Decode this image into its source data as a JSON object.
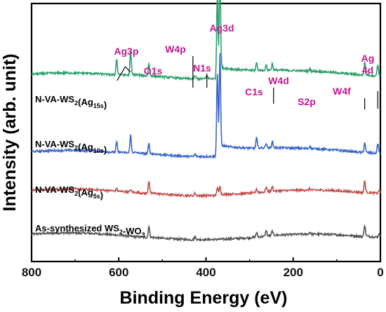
{
  "chart_data": {
    "type": "line",
    "xlabel": "Binding Energy (eV)",
    "ylabel": "Intensity (arb. unit)",
    "xlim": [
      800,
      0
    ],
    "x_reversed": true,
    "xticks": [
      800,
      600,
      400,
      200,
      0
    ],
    "y_ticks_shown": false,
    "grid": false,
    "peak_annotation_color": "#c2188f",
    "peak_annotations": [
      {
        "text": "Ag3p",
        "x": 585
      },
      {
        "text": "O1s",
        "x": 531
      },
      {
        "text": "W4p",
        "x": 430
      },
      {
        "text": "N1s",
        "x": 398
      },
      {
        "text": "Ag3d",
        "x": 368
      },
      {
        "text": "C1s",
        "x": 284
      },
      {
        "text": "W4d",
        "x": 245
      },
      {
        "text": "S2p",
        "x": 162
      },
      {
        "text": "W4f",
        "x": 36
      },
      {
        "text": "Ag 4d",
        "x": 6
      }
    ],
    "series": [
      {
        "name": "As-synthesized WS2-WO3",
        "label_main": "As-synthesized WS",
        "label_sub": "2",
        "label_tail": "-WO",
        "label_sub2": "3",
        "color": "#555555",
        "baseline": 0.1,
        "peaks": [
          {
            "x": 531,
            "h": 0.045
          },
          {
            "x": 425,
            "h": 0.012
          },
          {
            "x": 284,
            "h": 0.018
          },
          {
            "x": 262,
            "h": 0.022
          },
          {
            "x": 248,
            "h": 0.018
          },
          {
            "x": 162,
            "h": 0.008
          },
          {
            "x": 36,
            "h": 0.045
          },
          {
            "x": 3,
            "h": 0.015
          }
        ]
      },
      {
        "name": "N-VA-WS2(Ag5s)",
        "label_main": "N-VA-WS",
        "label_sub": "2",
        "label_tail": "(Ag",
        "label_sub2": "5s",
        "label_end": ")",
        "color": "#c0504d",
        "baseline": 0.27,
        "peaks": [
          {
            "x": 605,
            "h": 0.008
          },
          {
            "x": 573,
            "h": 0.01
          },
          {
            "x": 531,
            "h": 0.05
          },
          {
            "x": 425,
            "h": 0.01
          },
          {
            "x": 374,
            "h": 0.03
          },
          {
            "x": 368,
            "h": 0.035
          },
          {
            "x": 284,
            "h": 0.015
          },
          {
            "x": 262,
            "h": 0.02
          },
          {
            "x": 248,
            "h": 0.018
          },
          {
            "x": 162,
            "h": 0.006
          },
          {
            "x": 36,
            "h": 0.045
          },
          {
            "x": 3,
            "h": 0.012
          }
        ]
      },
      {
        "name": "N-VA-WS2(Ag10s)",
        "label_main": "N-VA-WS",
        "label_sub": "2",
        "label_tail": "(Ag",
        "label_sub2": "10s",
        "label_end": ")",
        "color": "#3a66c9",
        "baseline": 0.42,
        "peaks": [
          {
            "x": 605,
            "h": 0.04
          },
          {
            "x": 573,
            "h": 0.07
          },
          {
            "x": 531,
            "h": 0.04
          },
          {
            "x": 425,
            "h": 0.01
          },
          {
            "x": 374,
            "h": 0.32
          },
          {
            "x": 368,
            "h": 0.38
          },
          {
            "x": 284,
            "h": 0.04
          },
          {
            "x": 262,
            "h": 0.02
          },
          {
            "x": 248,
            "h": 0.025
          },
          {
            "x": 162,
            "h": 0.01
          },
          {
            "x": 36,
            "h": 0.04
          },
          {
            "x": 6,
            "h": 0.04
          }
        ]
      },
      {
        "name": "N-VA-WS2(Ag15s)",
        "label_main": "N-VA-WS",
        "label_sub": "2",
        "label_tail": "(Ag",
        "label_sub2": "15s",
        "label_end": ")",
        "color": "#2e9f6b",
        "baseline": 0.72,
        "peaks": [
          {
            "x": 605,
            "h": 0.06
          },
          {
            "x": 573,
            "h": 0.09
          },
          {
            "x": 531,
            "h": 0.05
          },
          {
            "x": 425,
            "h": 0.012
          },
          {
            "x": 398,
            "h": 0.015
          },
          {
            "x": 374,
            "h": 0.32
          },
          {
            "x": 368,
            "h": 0.4
          },
          {
            "x": 284,
            "h": 0.03
          },
          {
            "x": 262,
            "h": 0.02
          },
          {
            "x": 248,
            "h": 0.025
          },
          {
            "x": 162,
            "h": 0.008
          },
          {
            "x": 36,
            "h": 0.05
          },
          {
            "x": 6,
            "h": 0.045
          }
        ]
      }
    ]
  }
}
